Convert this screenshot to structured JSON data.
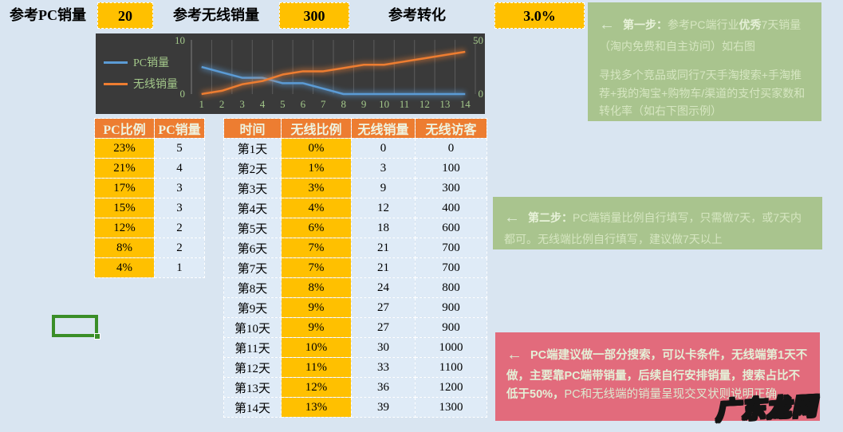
{
  "top_bar": {
    "pc_label": "参考PC销量",
    "pc_value": "20",
    "wireless_label": "参考无线销量",
    "wireless_value": "300",
    "conversion_label": "参考转化",
    "conversion_value": "3.0%"
  },
  "chart_data": {
    "type": "line",
    "title": "",
    "xlabel": "",
    "ylabel": "",
    "categories": [
      "1",
      "2",
      "3",
      "4",
      "5",
      "6",
      "7",
      "8",
      "9",
      "10",
      "11",
      "12",
      "13",
      "14"
    ],
    "series": [
      {
        "name": "PC销量",
        "color": "#5b9bd5",
        "axis": "left",
        "values": [
          5,
          4,
          3,
          3,
          2,
          2,
          1,
          0,
          0,
          0,
          0,
          0,
          0,
          0
        ]
      },
      {
        "name": "无线销量",
        "color": "#ed7d31",
        "axis": "right",
        "values": [
          0,
          3,
          9,
          12,
          18,
          21,
          21,
          24,
          27,
          27,
          30,
          33,
          36,
          39
        ]
      }
    ],
    "left_axis": {
      "min": 0,
      "max": 10,
      "ticks": [
        "0",
        "10"
      ]
    },
    "right_axis": {
      "min": 0,
      "max": 50,
      "ticks": [
        "0",
        "50"
      ]
    },
    "legend_position": "left",
    "grid": "vertical",
    "background": "#3a3a3a",
    "label_color": "#a3c88a"
  },
  "pc_table": {
    "headers": [
      "PC比例",
      "PC销量"
    ],
    "rows": [
      [
        "23%",
        "5"
      ],
      [
        "21%",
        "4"
      ],
      [
        "17%",
        "3"
      ],
      [
        "15%",
        "3"
      ],
      [
        "12%",
        "2"
      ],
      [
        "8%",
        "2"
      ],
      [
        "4%",
        "1"
      ]
    ]
  },
  "wireless_table": {
    "headers": [
      "时间",
      "无线比例",
      "无线销量",
      "无线访客"
    ],
    "rows": [
      [
        "第1天",
        "0%",
        "0",
        "0"
      ],
      [
        "第2天",
        "1%",
        "3",
        "100"
      ],
      [
        "第3天",
        "3%",
        "9",
        "300"
      ],
      [
        "第4天",
        "4%",
        "12",
        "400"
      ],
      [
        "第5天",
        "6%",
        "18",
        "600"
      ],
      [
        "第6天",
        "7%",
        "21",
        "700"
      ],
      [
        "第7天",
        "7%",
        "21",
        "700"
      ],
      [
        "第8天",
        "8%",
        "24",
        "800"
      ],
      [
        "第9天",
        "9%",
        "27",
        "900"
      ],
      [
        "第10天",
        "9%",
        "27",
        "900"
      ],
      [
        "第11天",
        "10%",
        "30",
        "1000"
      ],
      [
        "第12天",
        "11%",
        "33",
        "1100"
      ],
      [
        "第13天",
        "12%",
        "36",
        "1200"
      ],
      [
        "第14天",
        "13%",
        "39",
        "1300"
      ]
    ]
  },
  "notes": {
    "step1": {
      "arrow": "←",
      "title": "第一步：",
      "text_pre": "参考PC端行业",
      "bold_word": "优秀",
      "text_post": "7天销量（淘内免费和自主访问）如右图",
      "para2": "寻找多个竞品或同行7天手淘搜索+手淘推荐+我的淘宝+购物车/渠道的支付买家数和转化率（如右下图示例）"
    },
    "step2": {
      "arrow": "←",
      "title": "第二步：",
      "text": "PC端销量比例自行填写，只需做7天，或7天内都可。无线端比例自行填写，建议做7天以上"
    },
    "warning": {
      "arrow": "←",
      "bold_text": "PC端建议做一部分搜索，可以卡条件，无线端第1天不做，主要靠PC端带销量，后续自行安排销量，搜索占比不低于50%，",
      "text": "PC和无线端的销量呈现交叉状则说明正确"
    }
  },
  "watermark": "广东龙网",
  "colors": {
    "page_bg": "#d9e5f1",
    "gold": "#ffc000",
    "header_orange": "#ed7d31",
    "cell_blue": "#dfebf7",
    "chart_bg": "#3a3a3a",
    "chart_text": "#a3c88a",
    "note_green": "#a9c48e",
    "note_red": "#e26b7c",
    "selection_green": "#3a8e28"
  }
}
